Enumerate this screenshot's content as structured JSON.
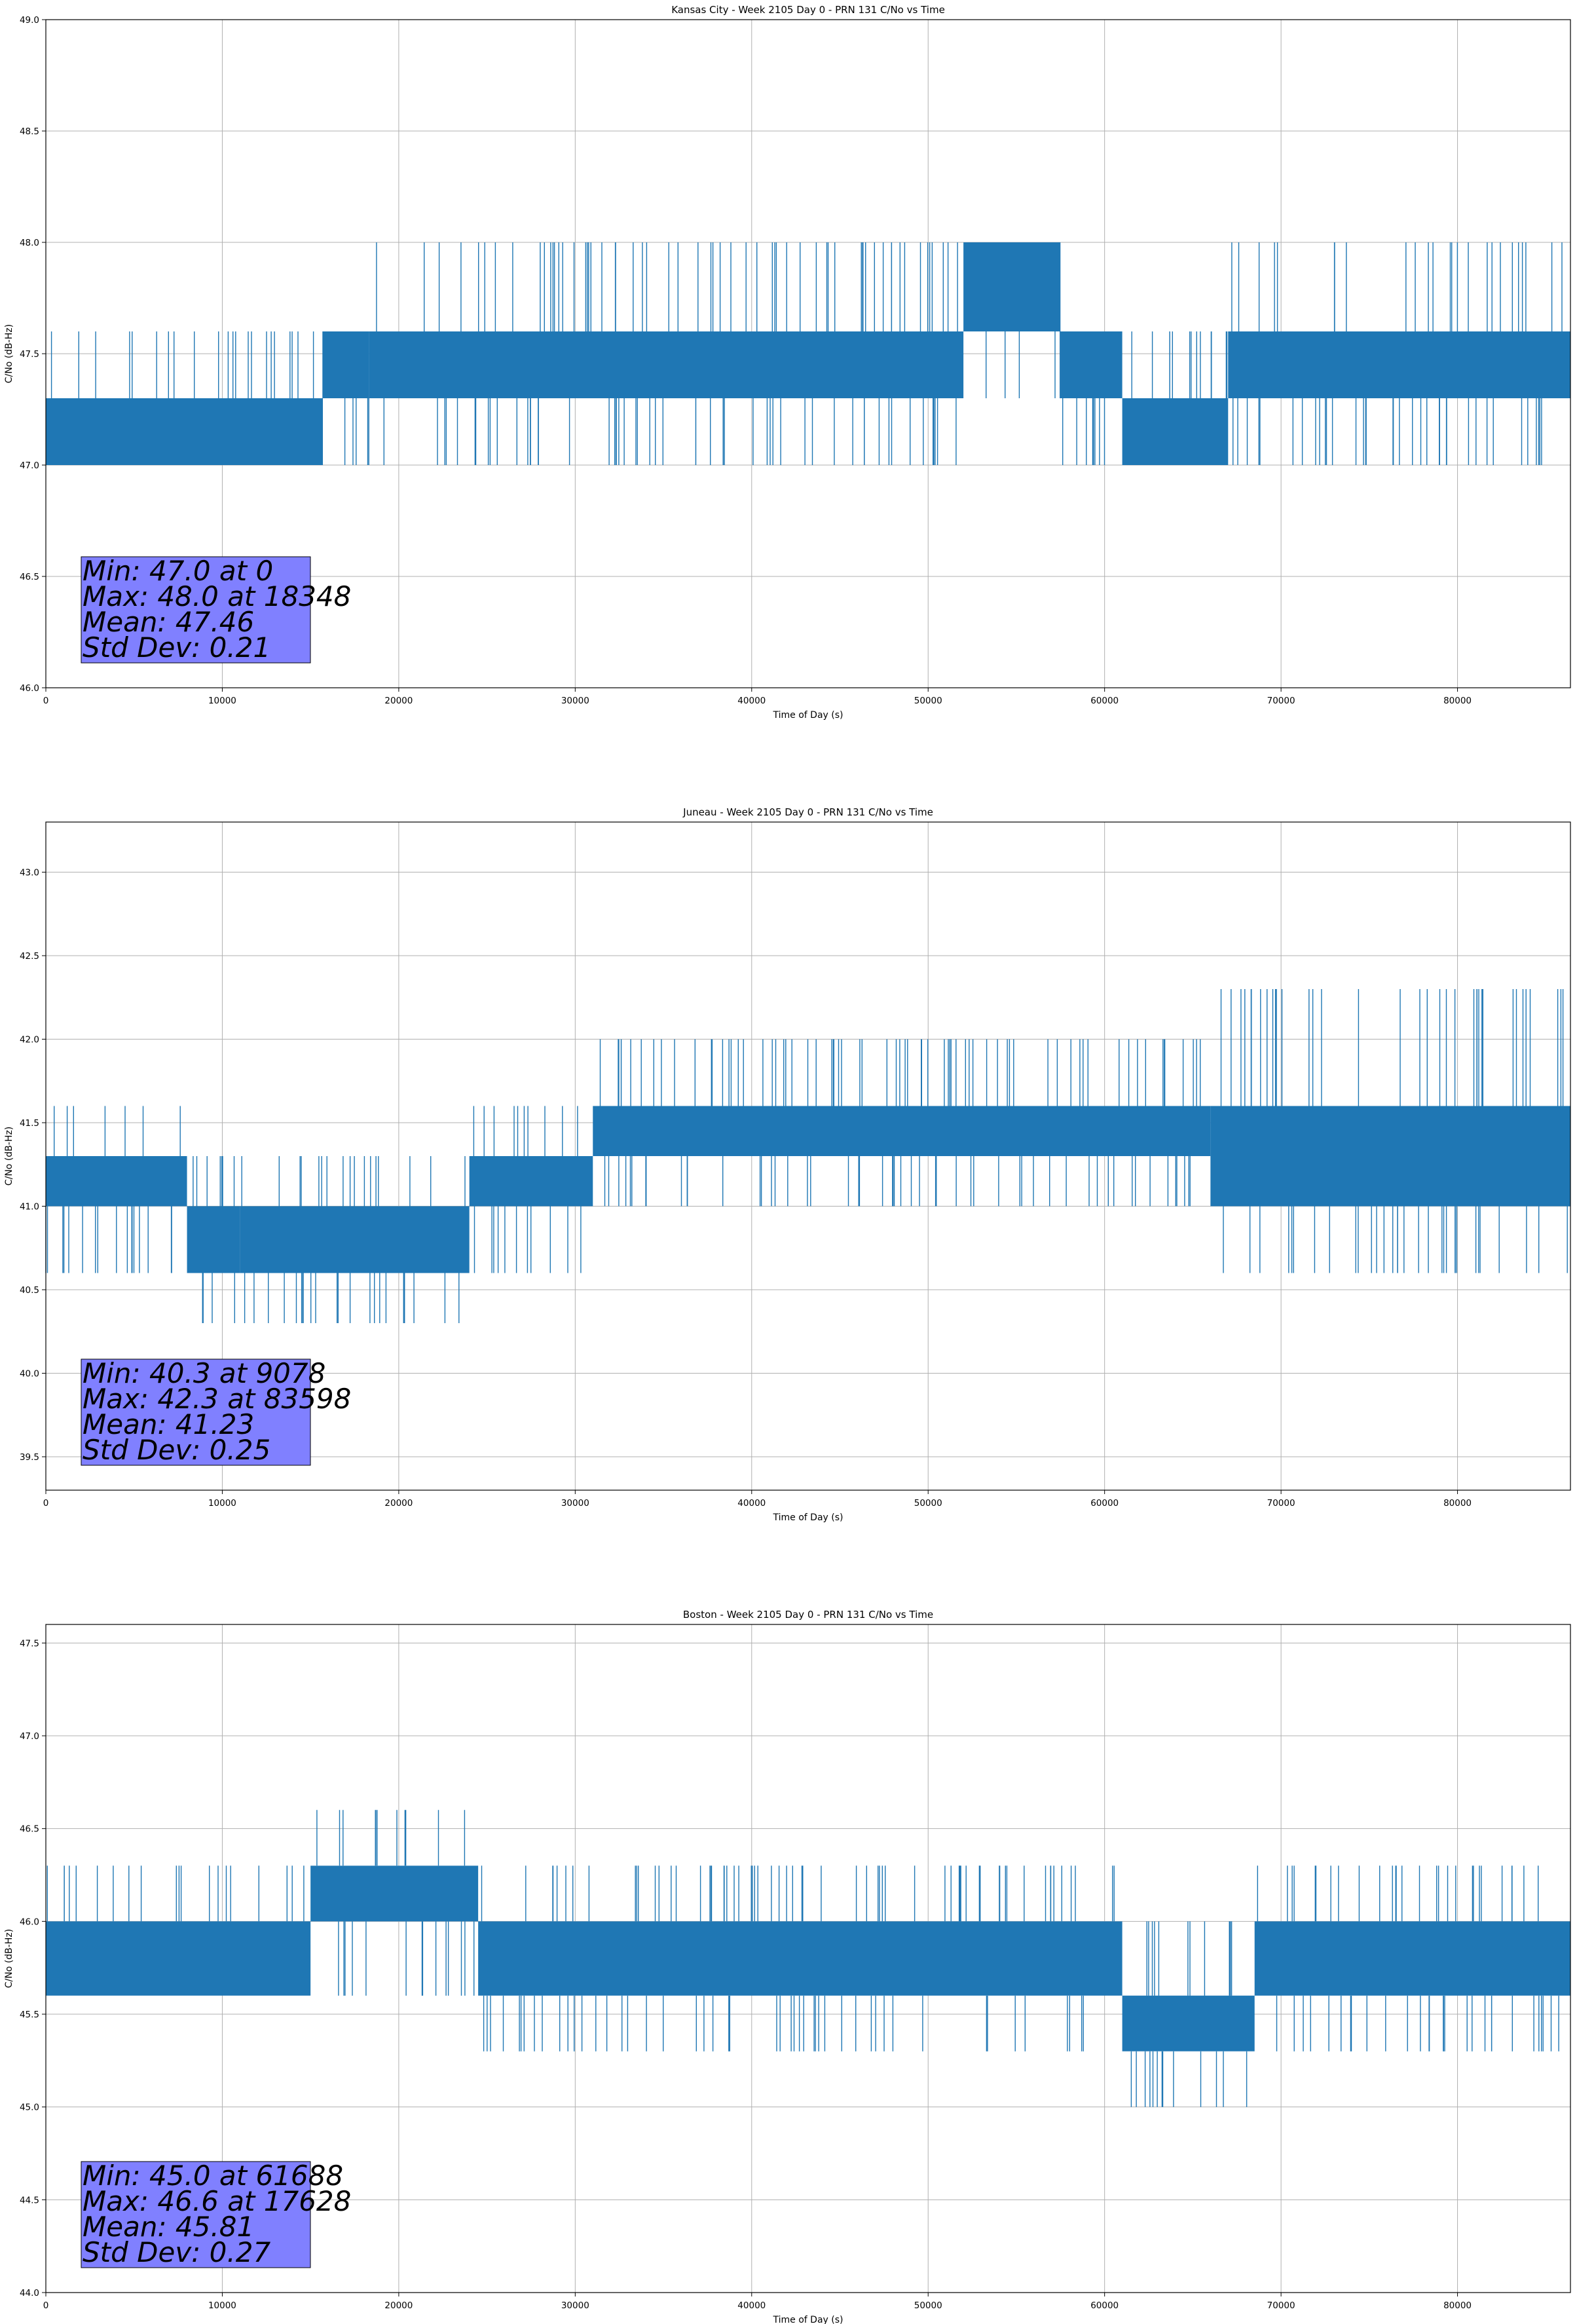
{
  "colors": {
    "series": "#1f77b4",
    "stats_box": "#8080ff",
    "grid": "#b0b0b0"
  },
  "chart_data": [
    {
      "type": "line",
      "title": "Kansas City - Week 2105 Day 0 - PRN 131 C/No vs Time",
      "xlabel": "Time of Day (s)",
      "ylabel": "C/No (dB-Hz)",
      "xlim": [
        0,
        86400
      ],
      "ylim": [
        46.0,
        49.0
      ],
      "xticks": [
        0,
        10000,
        20000,
        30000,
        40000,
        50000,
        60000,
        70000,
        80000
      ],
      "yticks": [
        "46.0",
        "46.5",
        "47.0",
        "47.5",
        "48.0",
        "48.5",
        "49.0"
      ],
      "quantization": [
        47.0,
        47.3,
        47.6,
        48.0
      ],
      "segments": [
        {
          "x0": 0,
          "x1": 15700,
          "low": 47.0,
          "high": 47.3,
          "spike_hi": 47.6,
          "spike_lo": 47.0
        },
        {
          "x0": 15700,
          "x1": 18300,
          "low": 47.3,
          "high": 47.6,
          "spike_hi": 47.6,
          "spike_lo": 47.0
        },
        {
          "x0": 18300,
          "x1": 52000,
          "low": 47.3,
          "high": 47.6,
          "spike_hi": 48.0,
          "spike_lo": 47.0
        },
        {
          "x0": 52000,
          "x1": 57500,
          "low": 47.6,
          "high": 48.0,
          "spike_hi": 48.0,
          "spike_lo": 47.3
        },
        {
          "x0": 57500,
          "x1": 61000,
          "low": 47.3,
          "high": 47.6,
          "spike_hi": 47.6,
          "spike_lo": 47.0
        },
        {
          "x0": 61000,
          "x1": 67000,
          "low": 47.0,
          "high": 47.3,
          "spike_hi": 47.6,
          "spike_lo": 47.0
        },
        {
          "x0": 67000,
          "x1": 86400,
          "low": 47.3,
          "high": 47.6,
          "spike_hi": 48.0,
          "spike_lo": 47.0
        }
      ],
      "stats": [
        "Min: 47.0 at 0",
        "Max: 48.0 at 18348",
        "Mean: 47.46",
        "Std Dev: 0.21"
      ]
    },
    {
      "type": "line",
      "title": "Juneau - Week 2105 Day 0 - PRN 131 C/No vs Time",
      "xlabel": "Time of Day (s)",
      "ylabel": "C/No (dB-Hz)",
      "xlim": [
        0,
        86400
      ],
      "ylim": [
        39.3,
        43.3
      ],
      "xticks": [
        0,
        10000,
        20000,
        30000,
        40000,
        50000,
        60000,
        70000,
        80000
      ],
      "yticks": [
        "39.5",
        "40.0",
        "40.5",
        "41.0",
        "41.5",
        "42.0",
        "42.5",
        "43.0"
      ],
      "quantization": [
        40.3,
        40.6,
        41.0,
        41.3,
        41.6,
        42.0,
        42.3
      ],
      "segments": [
        {
          "x0": 0,
          "x1": 8000,
          "low": 41.0,
          "high": 41.3,
          "spike_hi": 41.6,
          "spike_lo": 40.6
        },
        {
          "x0": 8000,
          "x1": 11000,
          "low": 40.6,
          "high": 41.0,
          "spike_hi": 41.3,
          "spike_lo": 40.3
        },
        {
          "x0": 11000,
          "x1": 24000,
          "low": 40.6,
          "high": 41.0,
          "spike_hi": 41.3,
          "spike_lo": 40.3
        },
        {
          "x0": 24000,
          "x1": 31000,
          "low": 41.0,
          "high": 41.3,
          "spike_hi": 41.6,
          "spike_lo": 40.6
        },
        {
          "x0": 31000,
          "x1": 66000,
          "low": 41.3,
          "high": 41.6,
          "spike_hi": 42.0,
          "spike_lo": 41.0
        },
        {
          "x0": 66000,
          "x1": 86400,
          "low": 41.0,
          "high": 41.6,
          "spike_hi": 42.3,
          "spike_lo": 40.6
        }
      ],
      "stats": [
        "Min: 40.3 at 9078",
        "Max: 42.3 at 83598",
        "Mean: 41.23",
        "Std Dev: 0.25"
      ]
    },
    {
      "type": "line",
      "title": "Boston - Week 2105 Day 0 - PRN 131 C/No vs Time",
      "xlabel": "Time of Day (s)",
      "ylabel": "C/No (dB-Hz)",
      "xlim": [
        0,
        86400
      ],
      "ylim": [
        44.0,
        47.6
      ],
      "xticks": [
        0,
        10000,
        20000,
        30000,
        40000,
        50000,
        60000,
        70000,
        80000
      ],
      "yticks": [
        "44.0",
        "44.5",
        "45.0",
        "45.5",
        "46.0",
        "46.5",
        "47.0",
        "47.5"
      ],
      "quantization": [
        45.0,
        45.3,
        45.6,
        46.0,
        46.3,
        46.6
      ],
      "segments": [
        {
          "x0": 0,
          "x1": 15000,
          "low": 45.6,
          "high": 46.0,
          "spike_hi": 46.3,
          "spike_lo": 45.6
        },
        {
          "x0": 15000,
          "x1": 24500,
          "low": 46.0,
          "high": 46.3,
          "spike_hi": 46.6,
          "spike_lo": 45.6
        },
        {
          "x0": 24500,
          "x1": 61000,
          "low": 45.6,
          "high": 46.0,
          "spike_hi": 46.3,
          "spike_lo": 45.3
        },
        {
          "x0": 61000,
          "x1": 68500,
          "low": 45.3,
          "high": 45.6,
          "spike_hi": 46.0,
          "spike_lo": 45.0
        },
        {
          "x0": 68500,
          "x1": 86400,
          "low": 45.6,
          "high": 46.0,
          "spike_hi": 46.3,
          "spike_lo": 45.3
        }
      ],
      "stats": [
        "Min: 45.0 at 61688",
        "Max: 46.6 at 17628",
        "Mean: 45.81",
        "Std Dev: 0.27"
      ]
    }
  ]
}
